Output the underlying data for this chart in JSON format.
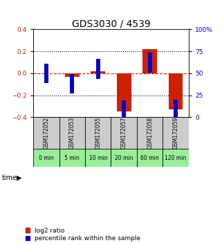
{
  "title": "GDS3030 / 4539",
  "samples": [
    "GSM172052",
    "GSM172053",
    "GSM172055",
    "GSM172057",
    "GSM172058",
    "GSM172059"
  ],
  "time_labels": [
    "0 min",
    "5 min",
    "10 min",
    "20 min",
    "60 min",
    "120 min"
  ],
  "log2_ratio": [
    0.0,
    -0.03,
    0.02,
    -0.35,
    0.22,
    -0.33
  ],
  "percentile_rank": [
    50,
    38,
    55,
    8,
    62,
    9
  ],
  "ylim_left": [
    -0.4,
    0.4
  ],
  "ylim_right": [
    0,
    100
  ],
  "yticks_left": [
    -0.4,
    -0.2,
    0.0,
    0.2,
    0.4
  ],
  "yticks_right": [
    0,
    25,
    50,
    75,
    100
  ],
  "red_color": "#cc2200",
  "blue_color": "#0000cc",
  "red_bar_width": 0.55,
  "blue_square_size": 0.18,
  "title_fontsize": 10,
  "tick_fontsize": 6.5,
  "legend_fontsize": 6.5,
  "sample_label_fontsize": 5.5,
  "time_bg_color": "#99ee99",
  "sample_bg_color": "#cccccc",
  "left_axis_color": "#cc2200",
  "right_axis_color": "#0000cc"
}
